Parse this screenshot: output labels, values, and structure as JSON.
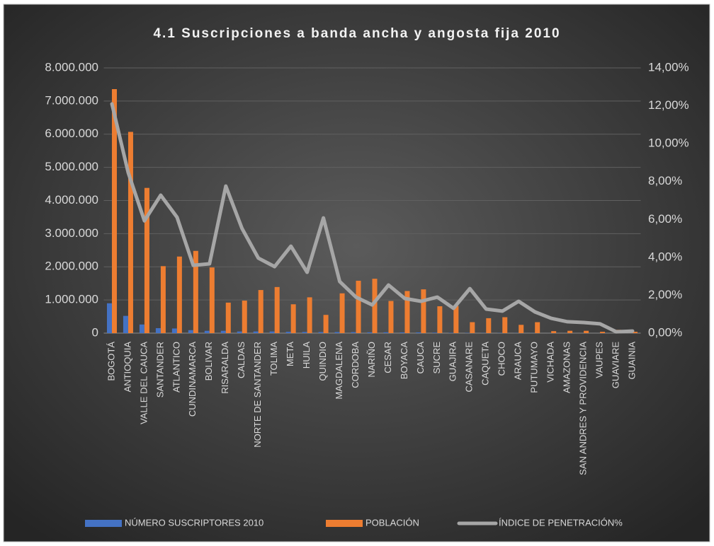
{
  "chart_data": {
    "type": "bar",
    "title": "4.1 Suscripciones a banda ancha y angosta fija 2010",
    "categories": [
      "BOGOTÁ",
      "ANTIOQUIA",
      "VALLE DEL CAUCA",
      "SANTANDER",
      "ATLANTICO",
      "CUNDINAMARCA",
      "BOLIVAR",
      "RISARALDA",
      "CALDAS",
      "NORTE DE SANTANDER",
      "TOLIMA",
      "META",
      "HUILA",
      "QUINDIO",
      "MAGDALENA",
      "CORDOBA",
      "NARIÑO",
      "CESAR",
      "BOYACA",
      "CAUCA",
      "SUCRE",
      "GUAJIRA",
      "CASANARE",
      "CAQUETA",
      "CHOCO",
      "ARAUCA",
      "PUTUMAYO",
      "VICHADA",
      "AMAZONAS",
      "SAN ANDRES Y PROVIDENCIA",
      "VAUPES",
      "GUAVIARE",
      "GUAINIA"
    ],
    "series": [
      {
        "name": "NÚMERO SUSCRIPTORES 2010",
        "color": "#4472c4",
        "type": "bar",
        "values": [
          900000,
          520000,
          260000,
          150000,
          140000,
          90000,
          70000,
          70000,
          50000,
          50000,
          50000,
          40000,
          35000,
          33000,
          33000,
          30000,
          25000,
          25000,
          23000,
          22000,
          15000,
          11000,
          8000,
          6000,
          6000,
          4000,
          4000,
          500,
          500,
          400,
          200,
          100,
          100
        ]
      },
      {
        "name": "POBLACIÓN",
        "color": "#ed7d31",
        "type": "bar",
        "values": [
          7360000,
          6070000,
          4380000,
          2020000,
          2310000,
          2480000,
          1980000,
          920000,
          980000,
          1300000,
          1390000,
          870000,
          1080000,
          550000,
          1200000,
          1580000,
          1640000,
          970000,
          1270000,
          1320000,
          810000,
          820000,
          330000,
          450000,
          480000,
          250000,
          330000,
          60000,
          70000,
          70000,
          40000,
          100000,
          40000
        ]
      },
      {
        "name": "ÍNDICE DE PENETRACIÓN%",
        "color": "#a6a6a6",
        "type": "line",
        "axis": "y2",
        "values": [
          12.1,
          8.47,
          5.93,
          7.28,
          6.12,
          3.58,
          3.66,
          7.76,
          5.52,
          3.96,
          3.51,
          4.59,
          3.21,
          6.08,
          2.72,
          1.9,
          1.49,
          2.54,
          1.83,
          1.68,
          1.9,
          1.31,
          2.35,
          1.27,
          1.16,
          1.68,
          1.12,
          0.78,
          0.6,
          0.56,
          0.49,
          0.07,
          0.11
        ]
      }
    ],
    "ylim": [
      0,
      8000000
    ],
    "yticks": [
      0,
      {
        "value": 1000000,
        "label": "1.000.000"
      },
      {
        "value": 2000000,
        "label": "2.000.000"
      },
      {
        "value": 3000000,
        "label": "3.000.000"
      },
      {
        "value": 4000000,
        "label": "4.000.000"
      },
      {
        "value": 5000000,
        "label": "5.000.000"
      },
      {
        "value": 6000000,
        "label": "6.000.000"
      },
      {
        "value": 7000000,
        "label": "7.000.000"
      },
      {
        "value": 8000000,
        "label": "8.000.000"
      }
    ],
    "y2lim": [
      0,
      14
    ],
    "y2ticks": [
      {
        "value": 0,
        "label": "0,00%"
      },
      {
        "value": 2,
        "label": "2,00%"
      },
      {
        "value": 4,
        "label": "4,00%"
      },
      {
        "value": 6,
        "label": "6,00%"
      },
      {
        "value": 8,
        "label": "8,00%"
      },
      {
        "value": 10,
        "label": "10,00%"
      },
      {
        "value": 12,
        "label": "12,00%"
      },
      {
        "value": 14,
        "label": "14,00%"
      }
    ],
    "grid": true,
    "legend": "bottom"
  }
}
